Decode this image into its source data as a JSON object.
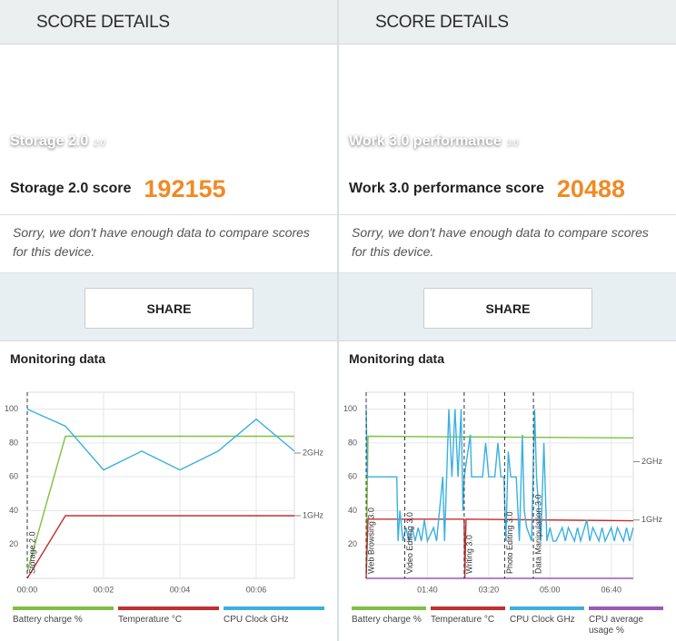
{
  "panels": [
    {
      "header": "SCORE DETAILS",
      "hero_title": "Storage 2.0",
      "hero_version": "2.0",
      "score_label": "Storage 2.0 score",
      "score": 192155,
      "note": "Sorry, we don't have enough data to compare scores for this device.",
      "share": "SHARE",
      "monitoring_title": "Monitoring data"
    },
    {
      "header": "SCORE DETAILS",
      "hero_title": "Work 3.0 performance",
      "hero_version": "3.0",
      "score_label": "Work 3.0 performance score",
      "score": 20488,
      "note": "Sorry, we don't have enough data to compare scores for this device.",
      "share": "SHARE",
      "monitoring_title": "Monitoring data"
    }
  ],
  "chart_data": [
    {
      "type": "line",
      "grid": true,
      "xlim": [
        0,
        7
      ],
      "xticks": [
        {
          "value": 0,
          "label": "00:00"
        },
        {
          "value": 2,
          "label": "00:02"
        },
        {
          "value": 4,
          "label": "00:04"
        },
        {
          "value": 6,
          "label": "00:06"
        }
      ],
      "ylim": [
        0,
        110
      ],
      "yticks": [
        20,
        40,
        60,
        80,
        100
      ],
      "y2lim": [
        0,
        2.97
      ],
      "y2ticks": [
        {
          "value": 1,
          "label": "1GHz"
        },
        {
          "value": 2,
          "label": "2GHz"
        }
      ],
      "markers": [
        {
          "label": "Storage 2.0",
          "x": 0
        }
      ],
      "series": [
        {
          "name": "Battery charge %",
          "color": "#7cc242",
          "x": [
            0,
            1,
            7
          ],
          "values": [
            4,
            84,
            84
          ]
        },
        {
          "name": "Temperature °C",
          "color": "#c0302f",
          "x": [
            0,
            1,
            7
          ],
          "values": [
            0,
            37,
            37
          ]
        },
        {
          "name": "CPU Clock GHz",
          "color": "#3ab0e0",
          "axis": "y2",
          "x": [
            0,
            1,
            2,
            3,
            4,
            5,
            6,
            7
          ],
          "values": [
            2.7,
            2.43,
            1.73,
            2.03,
            1.73,
            2.03,
            2.54,
            2.03
          ]
        }
      ]
    },
    {
      "type": "line",
      "grid": true,
      "xlim": [
        0,
        436
      ],
      "xticks": [
        {
          "value": 100,
          "label": "01:40"
        },
        {
          "value": 200,
          "label": "03:20"
        },
        {
          "value": 300,
          "label": "05:00"
        },
        {
          "value": 400,
          "label": "06:40"
        }
      ],
      "ylim": [
        0,
        110
      ],
      "yticks": [
        20,
        40,
        60,
        80,
        100
      ],
      "y2lim": [
        0,
        3.19
      ],
      "y2ticks": [
        {
          "value": 1,
          "label": "1GHz"
        },
        {
          "value": 2,
          "label": "2GHz"
        }
      ],
      "markers": [
        {
          "label": "Web Browsing 3.0",
          "x": 0
        },
        {
          "label": "Video Editing 3.0",
          "x": 63
        },
        {
          "label": "Writing 3.0",
          "x": 160
        },
        {
          "label": "Photo Editing 3.0",
          "x": 226
        },
        {
          "label": "Data Manipulation 3.0",
          "x": 273
        }
      ],
      "series": [
        {
          "name": "Battery charge %",
          "color": "#7cc242",
          "x": [
            0,
            3,
            436
          ],
          "values": [
            4,
            84,
            83
          ]
        },
        {
          "name": "Temperature °C",
          "color": "#c0302f",
          "x": [
            0,
            3,
            160,
            161,
            163,
            436
          ],
          "values": [
            0,
            35,
            35,
            0,
            35,
            34
          ]
        },
        {
          "name": "CPU Clock GHz",
          "color": "#3ab0e0",
          "axis": "y2",
          "x": [
            0,
            2,
            45,
            50,
            52,
            55,
            60,
            65,
            70,
            75,
            80,
            85,
            90,
            95,
            100,
            110,
            115,
            125,
            128,
            135,
            140,
            145,
            150,
            155,
            158,
            160,
            170,
            172,
            190,
            195,
            200,
            210,
            215,
            220,
            225,
            228,
            232,
            236,
            245,
            250,
            255,
            258,
            262,
            270,
            275,
            278,
            285,
            290,
            295,
            300,
            305,
            310,
            320,
            325,
            330,
            340,
            345,
            350,
            360,
            365,
            370,
            380,
            385,
            390,
            400,
            405,
            410,
            420,
            425,
            430,
            436
          ],
          "values": [
            2.9,
            1.74,
            1.74,
            1.74,
            0.64,
            1.16,
            0.64,
            0.87,
            0.64,
            0.87,
            0.64,
            0.87,
            0.64,
            1.0,
            0.64,
            0.87,
            0.64,
            1.74,
            0.64,
            2.9,
            1.74,
            2.9,
            1.74,
            2.9,
            1.16,
            1.74,
            2.46,
            1.74,
            1.74,
            2.32,
            1.74,
            1.74,
            2.32,
            1.74,
            1.74,
            0.64,
            2.17,
            1.74,
            1.74,
            0.64,
            2.46,
            1.16,
            0.87,
            0.64,
            2.9,
            1.74,
            0.64,
            2.32,
            0.64,
            0.87,
            0.64,
            0.64,
            0.87,
            0.64,
            0.87,
            0.64,
            0.87,
            0.64,
            1.0,
            0.64,
            0.87,
            0.64,
            0.87,
            0.64,
            0.87,
            0.64,
            0.87,
            0.64,
            0.87,
            0.64,
            0.87
          ]
        },
        {
          "name": "CPU average usage %",
          "color": "#9b59b6",
          "x": [
            0,
            436
          ],
          "values": [
            0,
            0
          ]
        }
      ]
    }
  ]
}
